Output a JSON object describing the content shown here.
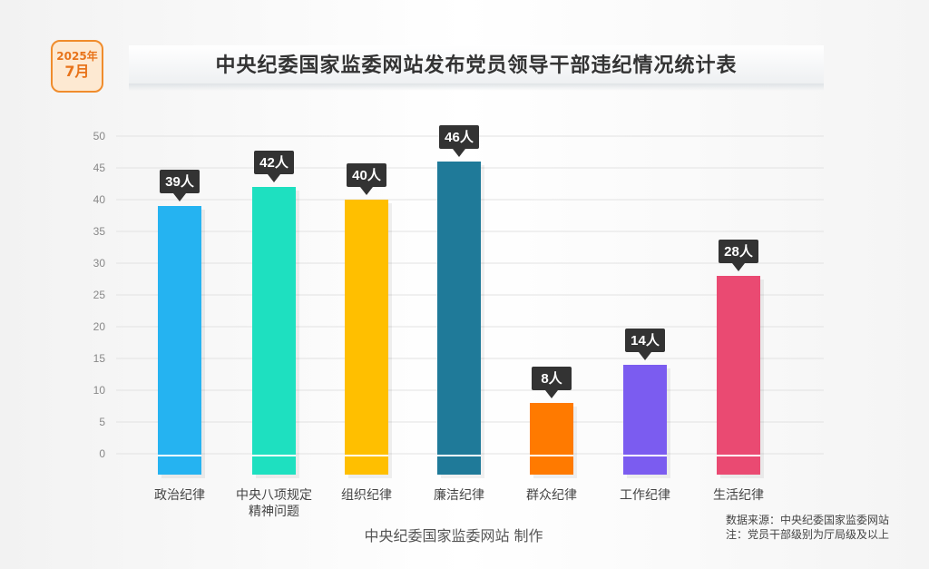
{
  "badge": {
    "year": "2025年",
    "month": "7月"
  },
  "header": {
    "title": "中央纪委国家监委网站发布党员领导干部违纪情况统计表"
  },
  "footer": {
    "maker": "中央纪委国家监委网站 制作",
    "source": "数据来源：中央纪委国家监委网站",
    "note": "注：党员干部级别为厅局级及以上"
  },
  "chart_data": {
    "type": "bar",
    "title": "中央纪委国家监委网站发布党员领导干部违纪情况统计表",
    "categories": [
      [
        "政治纪律"
      ],
      [
        "中央八项规定",
        "精神问题"
      ],
      [
        "组织纪律"
      ],
      [
        "廉洁纪律"
      ],
      [
        "群众纪律"
      ],
      [
        "工作纪律"
      ],
      [
        "生活纪律"
      ]
    ],
    "values": [
      39,
      42,
      40,
      46,
      8,
      14,
      28
    ],
    "value_labels": [
      "39人",
      "42人",
      "40人",
      "46人",
      "8人",
      "14人",
      "28人"
    ],
    "colors": [
      "#25b3f1",
      "#1ee0c0",
      "#ffbf00",
      "#1f7a99",
      "#ff7a00",
      "#7b5cf0",
      "#ea4a72"
    ],
    "yticks": [
      0,
      5,
      10,
      15,
      20,
      25,
      30,
      35,
      40,
      45,
      50
    ],
    "ylim": [
      0,
      50
    ],
    "grid": true,
    "xlabel": "",
    "ylabel": ""
  }
}
